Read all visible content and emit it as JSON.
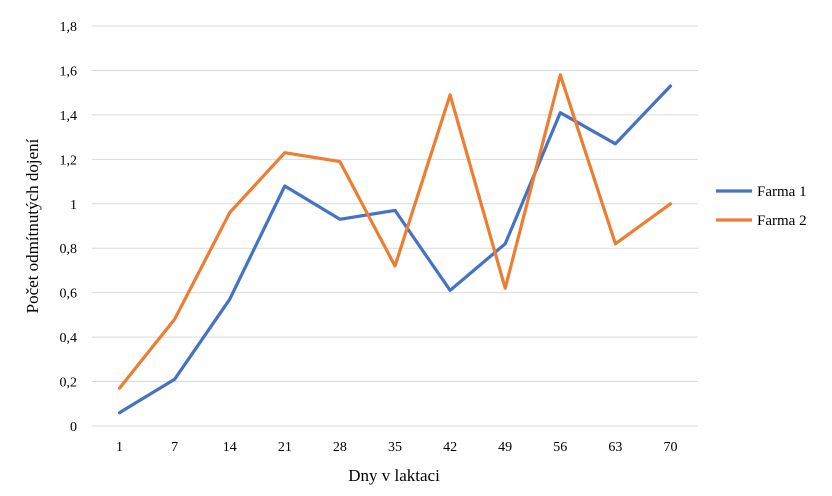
{
  "chart_data": {
    "type": "line",
    "title": "",
    "xlabel": "Dny v laktaci",
    "ylabel": "Počet odmítnutých dojení",
    "categories": [
      "1",
      "7",
      "14",
      "21",
      "28",
      "35",
      "42",
      "49",
      "56",
      "63",
      "70"
    ],
    "yticks": [
      "0",
      "0,2",
      "0,4",
      "0,6",
      "0,8",
      "1",
      "1,2",
      "1,4",
      "1,6",
      "1,8"
    ],
    "ylim": [
      0,
      1.8
    ],
    "grid": true,
    "legend_position": "right",
    "series": [
      {
        "name": "Farma 1",
        "color": "#4472C4",
        "values": [
          0.06,
          0.21,
          0.57,
          1.08,
          0.93,
          0.97,
          0.61,
          0.82,
          1.41,
          1.27,
          1.53
        ]
      },
      {
        "name": "Farma 2",
        "color": "#ED7D31",
        "values": [
          0.17,
          0.48,
          0.96,
          1.23,
          1.19,
          0.72,
          1.49,
          0.62,
          1.58,
          0.82,
          1.0
        ]
      }
    ]
  }
}
